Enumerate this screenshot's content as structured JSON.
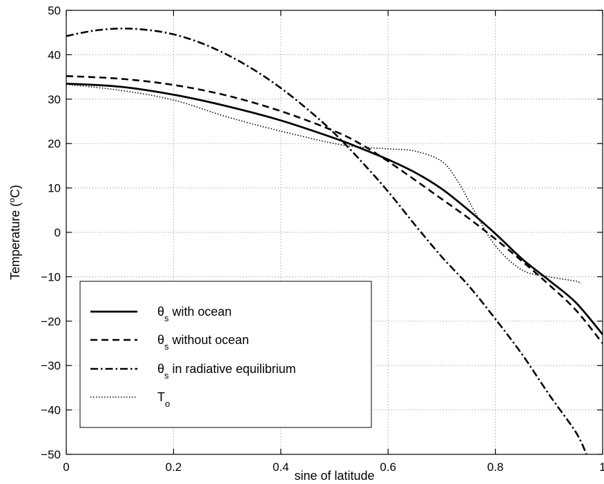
{
  "chart_data": {
    "type": "line",
    "xlabel": "sine of latitude",
    "ylabel_prefix": "Temperature (",
    "ylabel_sup": "o",
    "ylabel_suffix": "C)",
    "xlim": [
      0,
      1
    ],
    "ylim": [
      -50,
      50
    ],
    "xticks": [
      0,
      0.2,
      0.4,
      0.6,
      0.8,
      1
    ],
    "xtick_labels": [
      "0",
      "0.2",
      "0.4",
      "0.6",
      "0.8",
      "1"
    ],
    "yticks": [
      -50,
      -40,
      -30,
      -20,
      -10,
      0,
      10,
      20,
      30,
      40,
      50
    ],
    "ytick_labels": [
      "−50",
      "−40",
      "−30",
      "−20",
      "−10",
      "0",
      "10",
      "20",
      "30",
      "40",
      "50"
    ],
    "grid": true,
    "legend_position": "bottom-left",
    "series": [
      {
        "symbol": "θ",
        "subscript": "s",
        "name": " with ocean",
        "style": "solid",
        "x": [
          0,
          0.1,
          0.2,
          0.3,
          0.4,
          0.5,
          0.55,
          0.6,
          0.65,
          0.7,
          0.75,
          0.8,
          0.85,
          0.9,
          0.95,
          1.0
        ],
        "y": [
          33.5,
          32.8,
          31.0,
          28.4,
          25.2,
          21.2,
          18.9,
          16.4,
          13.5,
          9.8,
          5.0,
          -0.3,
          -6.0,
          -10.8,
          -15.8,
          -23.0
        ]
      },
      {
        "symbol": "θ",
        "subscript": "s",
        "name": " without ocean",
        "style": "dashed",
        "x": [
          0,
          0.1,
          0.2,
          0.3,
          0.4,
          0.5,
          0.55,
          0.6,
          0.65,
          0.7,
          0.75,
          0.8,
          0.85,
          0.9,
          0.95,
          1.0
        ],
        "y": [
          35.2,
          34.6,
          33.2,
          30.8,
          27.3,
          22.8,
          19.8,
          16.0,
          11.8,
          7.5,
          3.2,
          -1.5,
          -6.5,
          -11.8,
          -17.5,
          -25.0
        ]
      },
      {
        "symbol": "θ",
        "subscript": "s",
        "name": " in radiative equilibrium",
        "style": "dashdot",
        "x": [
          0,
          0.05,
          0.1,
          0.15,
          0.2,
          0.25,
          0.3,
          0.35,
          0.4,
          0.45,
          0.5,
          0.55,
          0.6,
          0.65,
          0.7,
          0.75,
          0.8,
          0.85,
          0.9,
          0.95,
          0.97
        ],
        "y": [
          44.2,
          45.4,
          45.9,
          45.6,
          44.6,
          42.7,
          40.0,
          36.6,
          32.5,
          27.7,
          22.3,
          16.0,
          9.2,
          1.7,
          -5.5,
          -12.0,
          -19.5,
          -27.5,
          -36.5,
          -45.0,
          -50.0
        ]
      },
      {
        "symbol": "T",
        "subscript": "o",
        "name": "",
        "style": "dotted",
        "x": [
          0,
          0.1,
          0.2,
          0.3,
          0.4,
          0.5,
          0.55,
          0.6,
          0.65,
          0.7,
          0.73,
          0.76,
          0.8,
          0.85,
          0.9,
          0.95,
          0.96
        ],
        "y": [
          33.3,
          32.0,
          29.8,
          26.0,
          22.8,
          20.0,
          19.2,
          18.8,
          18.3,
          16.0,
          11.5,
          5.0,
          -3.0,
          -8.5,
          -10.0,
          -11.0,
          -11.5
        ]
      }
    ]
  }
}
